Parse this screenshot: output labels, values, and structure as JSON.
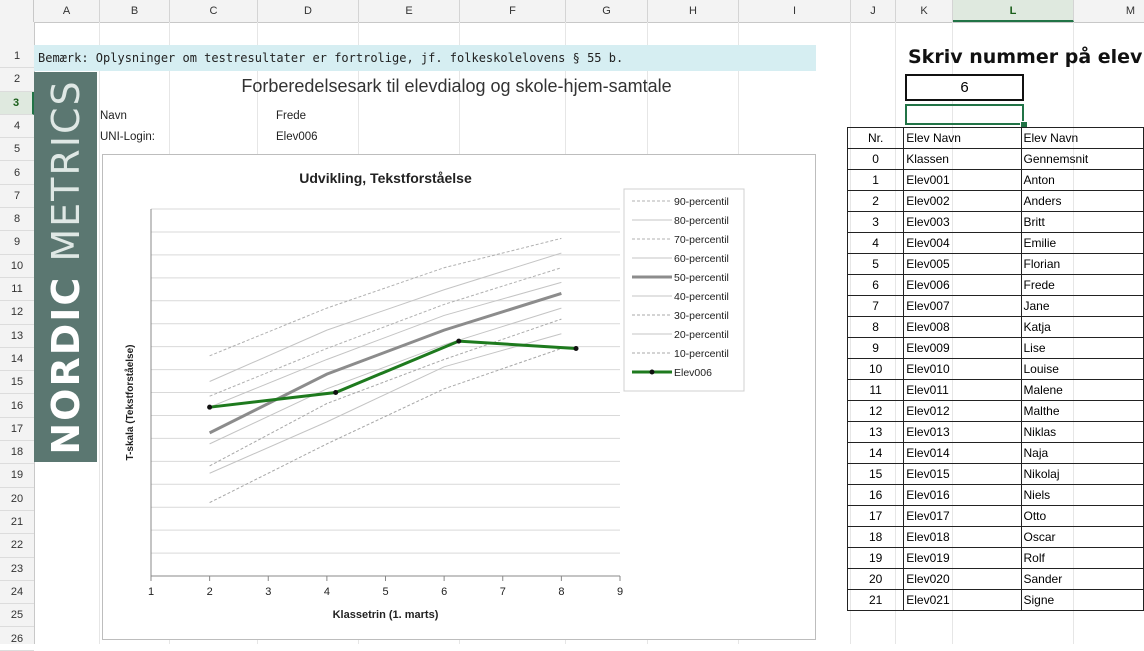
{
  "columns": [
    "A",
    "B",
    "C",
    "D",
    "E",
    "F",
    "G",
    "H",
    "I",
    "J",
    "K",
    "L",
    "M"
  ],
  "selected_column": "L",
  "rows": [
    "1",
    "2",
    "3",
    "4",
    "5",
    "6",
    "7",
    "8",
    "9",
    "10",
    "11",
    "12",
    "13",
    "14",
    "15",
    "16",
    "17",
    "18",
    "19",
    "20",
    "21",
    "22",
    "23",
    "24",
    "25",
    "26"
  ],
  "selected_row": "3",
  "notice": "Bemærk: Oplysninger om testresultater er fortrolige, jf. folkeskolelovens § 55 b.",
  "logo": {
    "bold": "NORDIC",
    "light": "METRICS"
  },
  "title": "Forberedelsesark til elevdialog og skole-hjem-samtale",
  "student": {
    "name_label": "Navn",
    "name_value": "Frede",
    "login_label": "UNI-Login:",
    "login_value": "Elev006"
  },
  "chart_data": {
    "type": "line",
    "title": "Udvikling, Tekstforståelse",
    "xlabel": "Klassetrin (1. marts)",
    "ylabel": "T-skala (Tekstforståelse)",
    "x_ticks": [
      1,
      2,
      3,
      4,
      5,
      6,
      7,
      8,
      9
    ],
    "xlim": [
      1,
      9
    ],
    "ylim": [
      0,
      100
    ],
    "grid": true,
    "legend_position": "right",
    "series": [
      {
        "name": "90-percentil",
        "style": "dashed",
        "color": "#b0b0b0",
        "x": [
          2,
          4,
          6,
          8
        ],
        "y": [
          60,
          73,
          84,
          92
        ]
      },
      {
        "name": "80-percentil",
        "style": "solid",
        "color": "#c4c4c4",
        "x": [
          2,
          4,
          6,
          8
        ],
        "y": [
          53,
          67,
          78,
          88
        ]
      },
      {
        "name": "70-percentil",
        "style": "dashed",
        "color": "#b0b0b0",
        "x": [
          2,
          4,
          6,
          8
        ],
        "y": [
          49,
          62,
          74,
          84
        ]
      },
      {
        "name": "60-percentil",
        "style": "solid",
        "color": "#c4c4c4",
        "x": [
          2,
          4,
          6,
          8
        ],
        "y": [
          46,
          59,
          71,
          80
        ]
      },
      {
        "name": "50-percentil",
        "style": "solid",
        "color": "#8c8c8c",
        "x": [
          2,
          4,
          6,
          8
        ],
        "y": [
          39,
          55,
          67,
          77
        ],
        "width": 3
      },
      {
        "name": "40-percentil",
        "style": "solid",
        "color": "#c4c4c4",
        "x": [
          2,
          4,
          6,
          8
        ],
        "y": [
          36,
          51,
          63,
          73
        ]
      },
      {
        "name": "30-percentil",
        "style": "dashed",
        "color": "#a8a8a8",
        "x": [
          2,
          4,
          6,
          8
        ],
        "y": [
          30,
          47,
          59,
          70
        ]
      },
      {
        "name": "20-percentil",
        "style": "solid",
        "color": "#c4c4c4",
        "x": [
          2,
          4,
          6,
          8
        ],
        "y": [
          28,
          42,
          57,
          66
        ]
      },
      {
        "name": "10-percentil",
        "style": "dashed",
        "color": "#a8a8a8",
        "x": [
          2,
          4,
          6,
          8
        ],
        "y": [
          20,
          36,
          51,
          62
        ]
      },
      {
        "name": "Elev006",
        "style": "solid",
        "color": "#1e7a1e",
        "x": [
          2,
          4.15,
          6.25,
          8.25
        ],
        "y": [
          46,
          50,
          64,
          62
        ],
        "width": 3,
        "markers": true
      }
    ]
  },
  "right_panel": {
    "prompt": "Skriv  nummer på elev:",
    "input_value": "6",
    "headers": [
      "Nr.",
      "Elev Navn",
      "Elev Navn"
    ],
    "rows": [
      [
        "0",
        "Klassen",
        "Gennemsnit"
      ],
      [
        "1",
        "Elev001",
        "Anton"
      ],
      [
        "2",
        "Elev002",
        "Anders"
      ],
      [
        "3",
        "Elev003",
        "Britt"
      ],
      [
        "4",
        "Elev004",
        "Emilie"
      ],
      [
        "5",
        "Elev005",
        "Florian"
      ],
      [
        "6",
        "Elev006",
        "Frede"
      ],
      [
        "7",
        "Elev007",
        "Jane"
      ],
      [
        "8",
        "Elev008",
        "Katja"
      ],
      [
        "9",
        "Elev009",
        "Lise"
      ],
      [
        "10",
        "Elev010",
        "Louise"
      ],
      [
        "11",
        "Elev011",
        "Malene"
      ],
      [
        "12",
        "Elev012",
        "Malthe"
      ],
      [
        "13",
        "Elev013",
        "Niklas"
      ],
      [
        "14",
        "Elev014",
        "Naja"
      ],
      [
        "15",
        "Elev015",
        "Nikolaj"
      ],
      [
        "16",
        "Elev016",
        "Niels"
      ],
      [
        "17",
        "Elev017",
        "Otto"
      ],
      [
        "18",
        "Elev018",
        "Oscar"
      ],
      [
        "19",
        "Elev019",
        "Rolf"
      ],
      [
        "20",
        "Elev020",
        "Sander"
      ],
      [
        "21",
        "Elev021",
        "Signe"
      ]
    ]
  }
}
